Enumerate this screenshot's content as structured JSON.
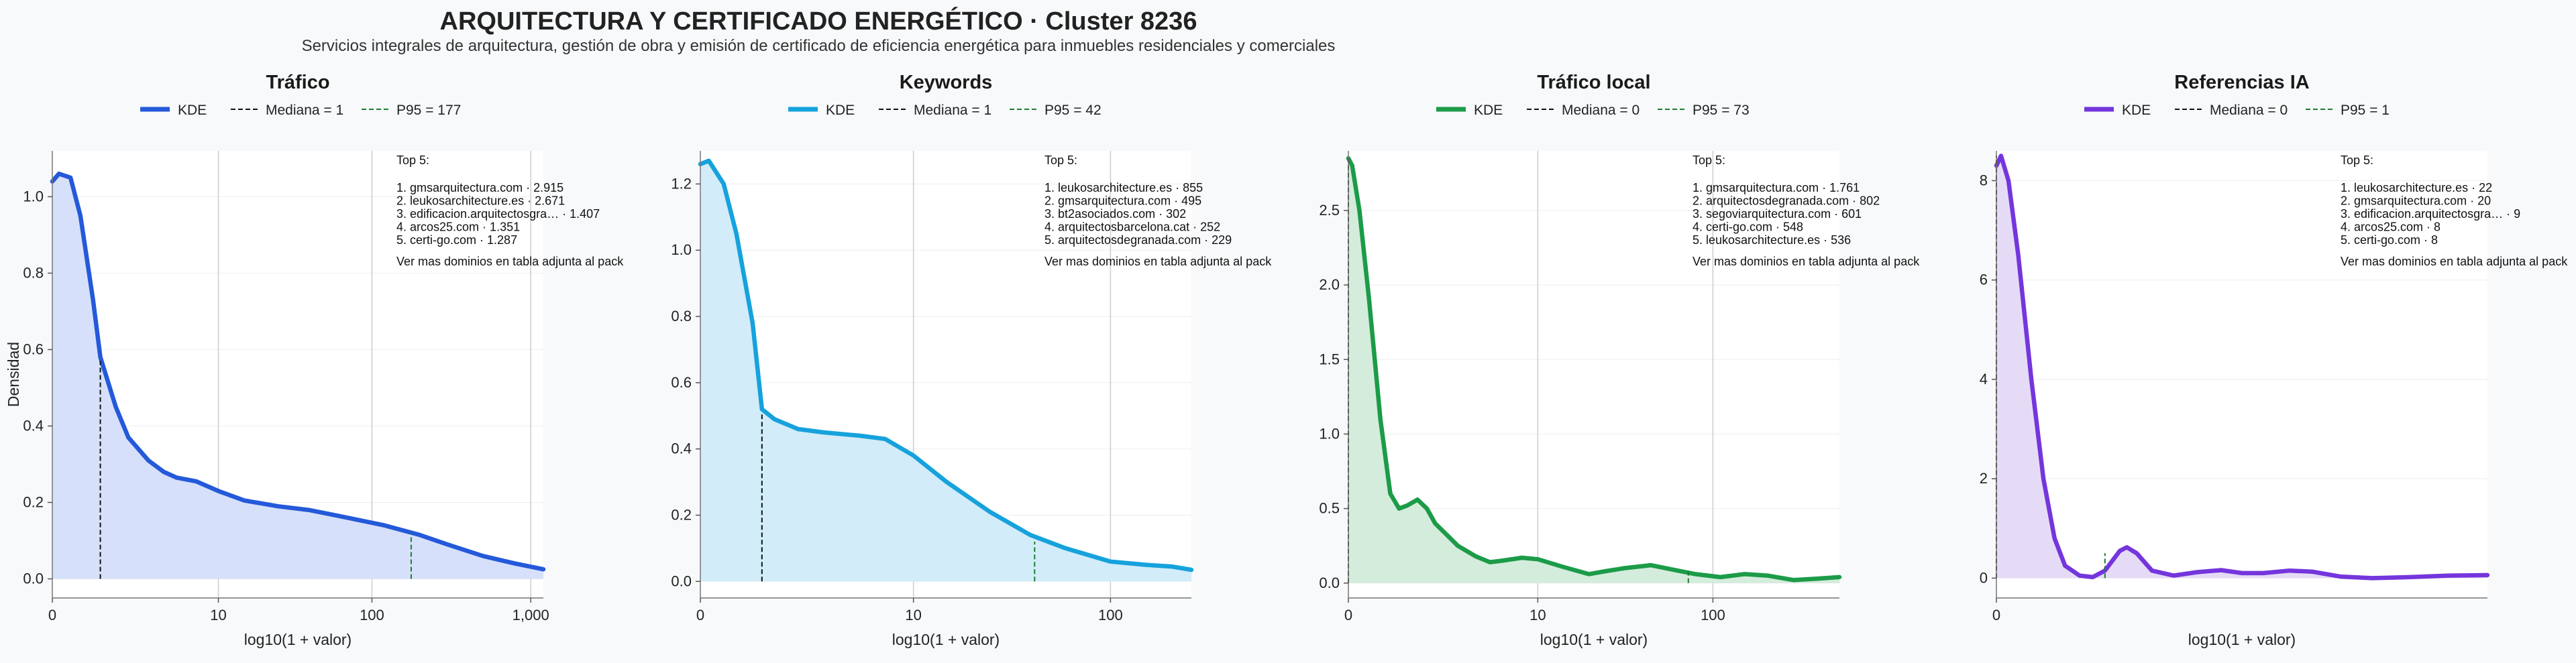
{
  "title": "ARQUITECTURA Y CERTIFICADO ENERGÉTICO · Cluster 8236",
  "subtitle": "Servicios integrales de arquitectura, gestión de obra y emisión de certificado de eficiencia energética para inmuebles residenciales y comerciales",
  "chart_data": [
    {
      "type": "area",
      "title": "Tráfico",
      "xlabel": "log10(1 + valor)",
      "ylabel": "Densidad",
      "color": "#2459d9",
      "fill": "#d6e0fa",
      "x_scale": "log10(1+x)",
      "xlim": [
        0,
        1200
      ],
      "ylim": [
        -0.05,
        1.12
      ],
      "xticks": [
        {
          "v": 0,
          "label": "0"
        },
        {
          "v": 10,
          "label": "10"
        },
        {
          "v": 100,
          "label": "100"
        },
        {
          "v": 1000,
          "label": "1,000"
        }
      ],
      "yticks": [
        {
          "v": 0,
          "label": "0.0"
        },
        {
          "v": 0.2,
          "label": "0.2"
        },
        {
          "v": 0.4,
          "label": "0.4"
        },
        {
          "v": 0.6,
          "label": "0.6"
        },
        {
          "v": 0.8,
          "label": "0.8"
        },
        {
          "v": 1.0,
          "label": "1.0"
        }
      ],
      "kde": [
        [
          0,
          1.04
        ],
        [
          0.1,
          1.06
        ],
        [
          0.3,
          1.05
        ],
        [
          0.5,
          0.95
        ],
        [
          0.8,
          0.73
        ],
        [
          1,
          0.58
        ],
        [
          1.5,
          0.45
        ],
        [
          2,
          0.37
        ],
        [
          3,
          0.31
        ],
        [
          4,
          0.28
        ],
        [
          5,
          0.265
        ],
        [
          7,
          0.255
        ],
        [
          10,
          0.23
        ],
        [
          15,
          0.205
        ],
        [
          25,
          0.19
        ],
        [
          40,
          0.18
        ],
        [
          70,
          0.16
        ],
        [
          120,
          0.14
        ],
        [
          200,
          0.115
        ],
        [
          300,
          0.09
        ],
        [
          500,
          0.06
        ],
        [
          800,
          0.04
        ],
        [
          1200,
          0.025
        ]
      ],
      "median": 1,
      "median_label": "Mediana = 1",
      "median_y": 0.57,
      "p95": 177,
      "p95_label": "P95 = 177",
      "p95_y": 0.12,
      "legend": [
        "KDE",
        "Mediana = 1",
        "P95 = 177"
      ],
      "top5_header": "Top 5:",
      "top5": [
        "1. gmsarquitectura.com · 2.915",
        "2. leukosarchitecture.es · 2.671",
        "3. edificacion.arquitectosgra… · 1.407",
        "4. arcos25.com · 1.351",
        "5. certi-go.com · 1.287"
      ],
      "more": "Ver mas dominios en tabla adjunta al pack"
    },
    {
      "type": "area",
      "title": "Keywords",
      "xlabel": "log10(1 + valor)",
      "ylabel": "",
      "color": "#16a2dc",
      "fill": "#d3ecf9",
      "x_scale": "log10(1+x)",
      "xlim": [
        0,
        250
      ],
      "ylim": [
        -0.05,
        1.3
      ],
      "xticks": [
        {
          "v": 0,
          "label": "0"
        },
        {
          "v": 10,
          "label": "10"
        },
        {
          "v": 100,
          "label": "100"
        }
      ],
      "yticks": [
        {
          "v": 0,
          "label": "0.0"
        },
        {
          "v": 0.2,
          "label": "0.2"
        },
        {
          "v": 0.4,
          "label": "0.4"
        },
        {
          "v": 0.6,
          "label": "0.6"
        },
        {
          "v": 0.8,
          "label": "0.8"
        },
        {
          "v": 1.0,
          "label": "1.0"
        },
        {
          "v": 1.2,
          "label": "1.2"
        }
      ],
      "kde": [
        [
          0,
          1.26
        ],
        [
          0.1,
          1.27
        ],
        [
          0.3,
          1.2
        ],
        [
          0.5,
          1.05
        ],
        [
          0.8,
          0.78
        ],
        [
          1,
          0.52
        ],
        [
          1.3,
          0.49
        ],
        [
          2,
          0.46
        ],
        [
          3,
          0.45
        ],
        [
          5,
          0.44
        ],
        [
          7,
          0.43
        ],
        [
          10,
          0.38
        ],
        [
          15,
          0.3
        ],
        [
          25,
          0.21
        ],
        [
          40,
          0.14
        ],
        [
          60,
          0.1
        ],
        [
          100,
          0.06
        ],
        [
          150,
          0.05
        ],
        [
          200,
          0.045
        ],
        [
          250,
          0.035
        ]
      ],
      "median": 1,
      "median_label": "Mediana = 1",
      "median_y": 0.51,
      "p95": 42,
      "p95_label": "P95 = 42",
      "p95_y": 0.12,
      "legend": [
        "KDE",
        "Mediana = 1",
        "P95 = 42"
      ],
      "top5_header": "Top 5:",
      "top5": [
        "1. leukosarchitecture.es · 855",
        "2. gmsarquitectura.com · 495",
        "3. bt2asociados.com · 302",
        "4. arquitectosbarcelona.cat · 252",
        "5. arquitectosdegranada.com · 229"
      ],
      "more": "Ver mas dominios en tabla adjunta al pack"
    },
    {
      "type": "area",
      "title": "Tráfico local",
      "xlabel": "log10(1 + valor)",
      "ylabel": "",
      "color": "#1c9b48",
      "fill": "#d4ecdb",
      "x_scale": "log10(1+x)",
      "xlim": [
        0,
        500
      ],
      "ylim": [
        -0.1,
        2.9
      ],
      "xticks": [
        {
          "v": 0,
          "label": "0"
        },
        {
          "v": 10,
          "label": "10"
        },
        {
          "v": 100,
          "label": "100"
        }
      ],
      "yticks": [
        {
          "v": 0,
          "label": "0.0"
        },
        {
          "v": 0.5,
          "label": "0.5"
        },
        {
          "v": 1.0,
          "label": "1.0"
        },
        {
          "v": 1.5,
          "label": "1.5"
        },
        {
          "v": 2.0,
          "label": "2.0"
        },
        {
          "v": 2.5,
          "label": "2.5"
        }
      ],
      "kde": [
        [
          0,
          2.85
        ],
        [
          0.05,
          2.8
        ],
        [
          0.15,
          2.5
        ],
        [
          0.3,
          1.9
        ],
        [
          0.5,
          1.1
        ],
        [
          0.7,
          0.6
        ],
        [
          0.9,
          0.5
        ],
        [
          1.1,
          0.52
        ],
        [
          1.4,
          0.56
        ],
        [
          1.7,
          0.5
        ],
        [
          2,
          0.4
        ],
        [
          2.5,
          0.32
        ],
        [
          3,
          0.25
        ],
        [
          4,
          0.18
        ],
        [
          5,
          0.14
        ],
        [
          6,
          0.15
        ],
        [
          8,
          0.17
        ],
        [
          10,
          0.16
        ],
        [
          14,
          0.11
        ],
        [
          20,
          0.06
        ],
        [
          25,
          0.08
        ],
        [
          32,
          0.1
        ],
        [
          45,
          0.12
        ],
        [
          60,
          0.09
        ],
        [
          80,
          0.06
        ],
        [
          110,
          0.04
        ],
        [
          150,
          0.06
        ],
        [
          200,
          0.05
        ],
        [
          280,
          0.02
        ],
        [
          380,
          0.03
        ],
        [
          500,
          0.04
        ]
      ],
      "median": 0,
      "median_label": "Mediana = 0",
      "median_y": 2.85,
      "p95": 73,
      "p95_label": "P95 = 73",
      "p95_y": 0.08,
      "legend": [
        "KDE",
        "Mediana = 0",
        "P95 = 73"
      ],
      "top5_header": "Top 5:",
      "top5": [
        "1. gmsarquitectura.com · 1.761",
        "2. arquitectosdegranada.com · 802",
        "3. segoviarquitectura.com · 601",
        "4. certi-go.com · 548",
        "5. leukosarchitecture.es · 536"
      ],
      "more": "Ver mas dominios en tabla adjunta al pack"
    },
    {
      "type": "area",
      "title": "Referencias IA",
      "xlabel": "log10(1 + valor)",
      "ylabel": "",
      "color": "#7436dc",
      "fill": "#e6dbf6",
      "x_scale": "log10(1+x)",
      "xlim": [
        0,
        22
      ],
      "ylim": [
        -0.4,
        8.6
      ],
      "xticks": [
        {
          "v": 0,
          "label": "0"
        }
      ],
      "yticks": [
        {
          "v": 0,
          "label": "0"
        },
        {
          "v": 2,
          "label": "2"
        },
        {
          "v": 4,
          "label": "4"
        },
        {
          "v": 6,
          "label": "6"
        },
        {
          "v": 8,
          "label": "8"
        }
      ],
      "kde": [
        [
          0,
          8.3
        ],
        [
          0.03,
          8.5
        ],
        [
          0.08,
          8.0
        ],
        [
          0.15,
          6.5
        ],
        [
          0.25,
          4.0
        ],
        [
          0.35,
          2.0
        ],
        [
          0.45,
          0.8
        ],
        [
          0.55,
          0.25
        ],
        [
          0.7,
          0.05
        ],
        [
          0.85,
          0.02
        ],
        [
          1.0,
          0.15
        ],
        [
          1.2,
          0.55
        ],
        [
          1.3,
          0.62
        ],
        [
          1.45,
          0.5
        ],
        [
          1.7,
          0.15
        ],
        [
          2.1,
          0.05
        ],
        [
          2.6,
          0.12
        ],
        [
          3.2,
          0.16
        ],
        [
          3.8,
          0.1
        ],
        [
          4.5,
          0.1
        ],
        [
          5.5,
          0.15
        ],
        [
          6.5,
          0.13
        ],
        [
          8,
          0.03
        ],
        [
          10,
          0.0
        ],
        [
          13,
          0.02
        ],
        [
          17,
          0.05
        ],
        [
          22,
          0.06
        ]
      ],
      "median": 0,
      "median_label": "Mediana = 0",
      "median_y": 8.5,
      "p95": 1,
      "p95_label": "P95 = 1",
      "p95_y": 0.5,
      "legend": [
        "KDE",
        "Mediana = 0",
        "P95 = 1"
      ],
      "top5_header": "Top 5:",
      "top5": [
        "1. leukosarchitecture.es · 22",
        "2. gmsarquitectura.com · 20",
        "3. edificacion.arquitectosgra… · 9",
        "4. arcos25.com · 8",
        "5. certi-go.com · 8"
      ],
      "more": "Ver mas dominios en tabla adjunta al pack"
    }
  ]
}
